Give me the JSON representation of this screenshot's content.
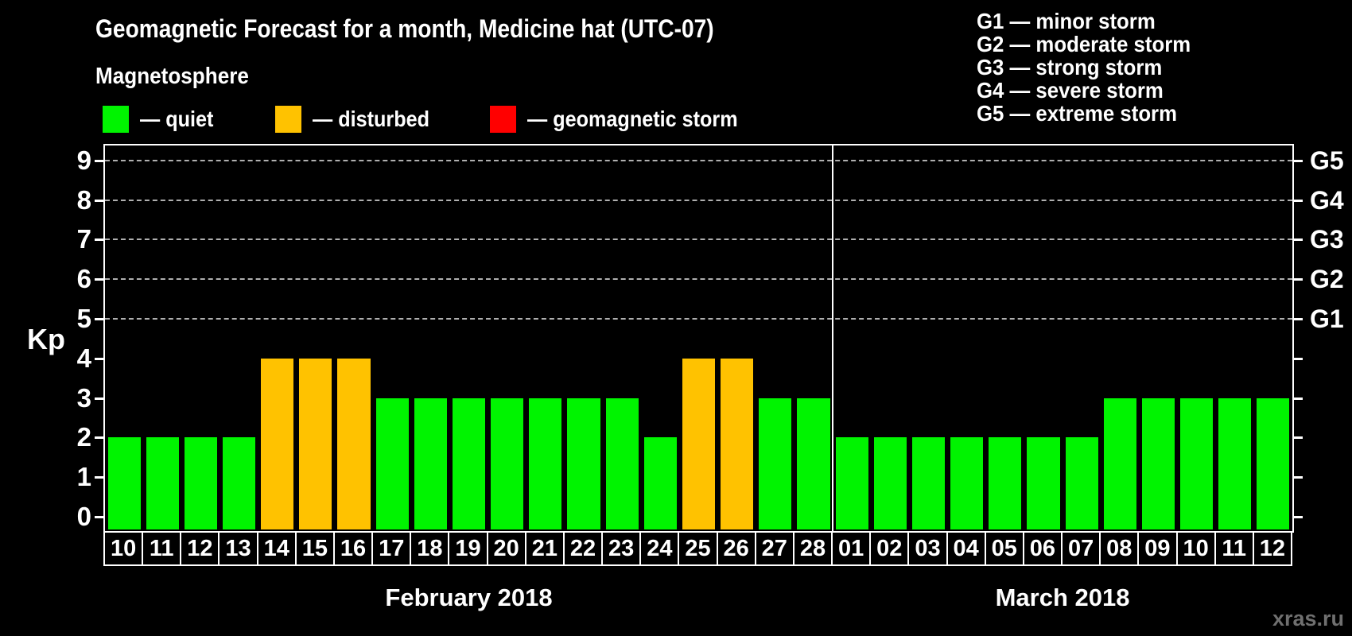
{
  "watermark": "xras.ru",
  "legend": {
    "heading": "Magnetosphere",
    "items": [
      {
        "key": "quiet",
        "label": "— quiet",
        "color": "#00f400"
      },
      {
        "key": "disturbed",
        "label": "— disturbed",
        "color": "#ffc200"
      },
      {
        "key": "storm",
        "label": "— geomagnetic storm",
        "color": "#ff0000"
      }
    ]
  },
  "g_legend": [
    "G1 — minor storm",
    "G2 — moderate storm",
    "G3 — strong storm",
    "G4 — severe storm",
    "G5 — extreme storm"
  ],
  "chart_data": {
    "type": "bar",
    "title": "Geomagnetic Forecast for a month, Medicine hat (UTC-07)",
    "ylabel": "Kp",
    "ylim": [
      -0.4,
      9.4
    ],
    "y_ticks": [
      0,
      1,
      2,
      3,
      4,
      5,
      6,
      7,
      8,
      9
    ],
    "gridlines_kp": [
      5,
      6,
      7,
      8,
      9
    ],
    "grid_style": "dashed",
    "legend_position": "top",
    "status_colors": {
      "quiet": "#00f400",
      "disturbed": "#ffc200",
      "storm": "#ff0000"
    },
    "right_axis_labels": [
      {
        "label": "G1",
        "kp": 5
      },
      {
        "label": "G2",
        "kp": 6
      },
      {
        "label": "G3",
        "kp": 7
      },
      {
        "label": "G4",
        "kp": 8
      },
      {
        "label": "G5",
        "kp": 9
      }
    ],
    "months": [
      {
        "label": "February 2018",
        "days": [
          {
            "day": "10",
            "kp": 2,
            "status": "quiet"
          },
          {
            "day": "11",
            "kp": 2,
            "status": "quiet"
          },
          {
            "day": "12",
            "kp": 2,
            "status": "quiet"
          },
          {
            "day": "13",
            "kp": 2,
            "status": "quiet"
          },
          {
            "day": "14",
            "kp": 4,
            "status": "disturbed"
          },
          {
            "day": "15",
            "kp": 4,
            "status": "disturbed"
          },
          {
            "day": "16",
            "kp": 4,
            "status": "disturbed"
          },
          {
            "day": "17",
            "kp": 3,
            "status": "quiet"
          },
          {
            "day": "18",
            "kp": 3,
            "status": "quiet"
          },
          {
            "day": "19",
            "kp": 3,
            "status": "quiet"
          },
          {
            "day": "20",
            "kp": 3,
            "status": "quiet"
          },
          {
            "day": "21",
            "kp": 3,
            "status": "quiet"
          },
          {
            "day": "22",
            "kp": 3,
            "status": "quiet"
          },
          {
            "day": "23",
            "kp": 3,
            "status": "quiet"
          },
          {
            "day": "24",
            "kp": 2,
            "status": "quiet"
          },
          {
            "day": "25",
            "kp": 4,
            "status": "disturbed"
          },
          {
            "day": "26",
            "kp": 4,
            "status": "disturbed"
          },
          {
            "day": "27",
            "kp": 3,
            "status": "quiet"
          },
          {
            "day": "28",
            "kp": 3,
            "status": "quiet"
          }
        ]
      },
      {
        "label": "March 2018",
        "days": [
          {
            "day": "01",
            "kp": 2,
            "status": "quiet"
          },
          {
            "day": "02",
            "kp": 2,
            "status": "quiet"
          },
          {
            "day": "03",
            "kp": 2,
            "status": "quiet"
          },
          {
            "day": "04",
            "kp": 2,
            "status": "quiet"
          },
          {
            "day": "05",
            "kp": 2,
            "status": "quiet"
          },
          {
            "day": "06",
            "kp": 2,
            "status": "quiet"
          },
          {
            "day": "07",
            "kp": 2,
            "status": "quiet"
          },
          {
            "day": "08",
            "kp": 3,
            "status": "quiet"
          },
          {
            "day": "09",
            "kp": 3,
            "status": "quiet"
          },
          {
            "day": "10",
            "kp": 3,
            "status": "quiet"
          },
          {
            "day": "11",
            "kp": 3,
            "status": "quiet"
          },
          {
            "day": "12",
            "kp": 3,
            "status": "quiet"
          }
        ]
      }
    ]
  }
}
